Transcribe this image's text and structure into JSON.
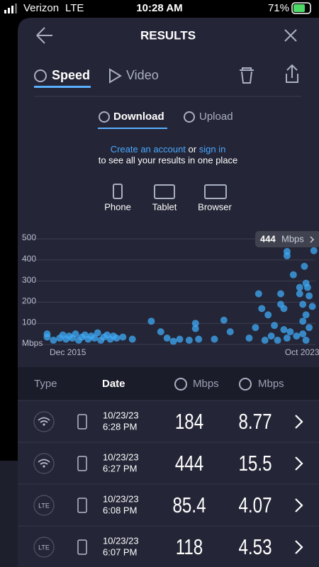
{
  "status": {
    "carrier": "Verizon",
    "network": "LTE",
    "time": "10:28 AM",
    "battery": "71%"
  },
  "header": {
    "title": "RESULTS"
  },
  "tabs": [
    "Speed",
    "Video"
  ],
  "subtabs": [
    "Download",
    "Upload"
  ],
  "prompt": {
    "link1": "Create an account",
    "joiner": "or",
    "link2": "sign in",
    "line2": "to see all your results in one place"
  },
  "devices": [
    "Phone",
    "Tablet",
    "Browser"
  ],
  "chart_data": {
    "type": "scatter",
    "color": "#3fa9f5",
    "x": [
      2015.6,
      2015.6,
      2015.8,
      2016.0,
      2016.1,
      2016.2,
      2016.3,
      2016.4,
      2016.5,
      2016.6,
      2016.7,
      2016.8,
      2016.9,
      2017.0,
      2017.1,
      2017.2,
      2017.3,
      2017.4,
      2017.5,
      2017.6,
      2017.7,
      2017.8,
      2018.0,
      2018.3,
      2018.9,
      2019.2,
      2019.4,
      2019.6,
      2019.8,
      2020.1,
      2020.3,
      2020.3,
      2020.4,
      2020.9,
      2021.2,
      2021.4,
      2022.0,
      2022.2,
      2022.3,
      2022.4,
      2022.5,
      2022.6,
      2022.7,
      2022.8,
      2022.9,
      2023.0,
      2023.0,
      2023.1,
      2023.1,
      2023.2,
      2023.2,
      2023.2,
      2023.3,
      2023.4,
      2023.5,
      2023.6,
      2023.6,
      2023.7,
      2023.7,
      2023.7,
      2023.75,
      2023.8,
      2023.8,
      2023.8,
      2023.85,
      2023.9,
      2023.9,
      2024.0,
      2024.05
    ],
    "values": [
      50,
      35,
      20,
      30,
      45,
      25,
      40,
      30,
      50,
      20,
      35,
      45,
      25,
      40,
      30,
      55,
      20,
      35,
      45,
      25,
      40,
      30,
      35,
      25,
      110,
      60,
      30,
      15,
      25,
      20,
      100,
      75,
      25,
      25,
      115,
      60,
      30,
      80,
      240,
      170,
      20,
      140,
      40,
      90,
      20,
      240,
      190,
      170,
      70,
      30,
      440,
      420,
      60,
      330,
      40,
      270,
      240,
      190,
      110,
      50,
      370,
      290,
      140,
      20,
      270,
      230,
      80,
      180,
      444
    ],
    "xlim": [
      2015.5,
      2024.1
    ],
    "xticks": [
      {
        "value": 2015.92,
        "label": "Dec 2015"
      },
      {
        "value": 2023.79,
        "label": "Oct 2023"
      }
    ],
    "ylim": [
      0,
      500
    ],
    "yticks": [
      {
        "value": 0,
        "label": "Mbps"
      },
      100,
      200,
      300,
      400,
      500
    ],
    "grid": true,
    "tooltip": {
      "value": 444,
      "unit": "Mbps"
    }
  },
  "table": {
    "header": [
      "Type",
      "Date",
      "Mbps",
      "Mbps"
    ],
    "rows": [
      {
        "date": "10/23/23",
        "time": "6:28 PM",
        "download": "184",
        "upload": "8.77"
      },
      {
        "date": "10/23/23",
        "time": "6:27 PM",
        "download": "444",
        "upload": "15.5"
      },
      {
        "type_label": "LTE",
        "date": "10/23/23",
        "time": "6:08 PM",
        "download": "85.4",
        "upload": "4.07"
      },
      {
        "type_label": "LTE",
        "date": "10/23/23",
        "time": "6:07 PM",
        "download": "118",
        "upload": "4.53"
      }
    ]
  }
}
